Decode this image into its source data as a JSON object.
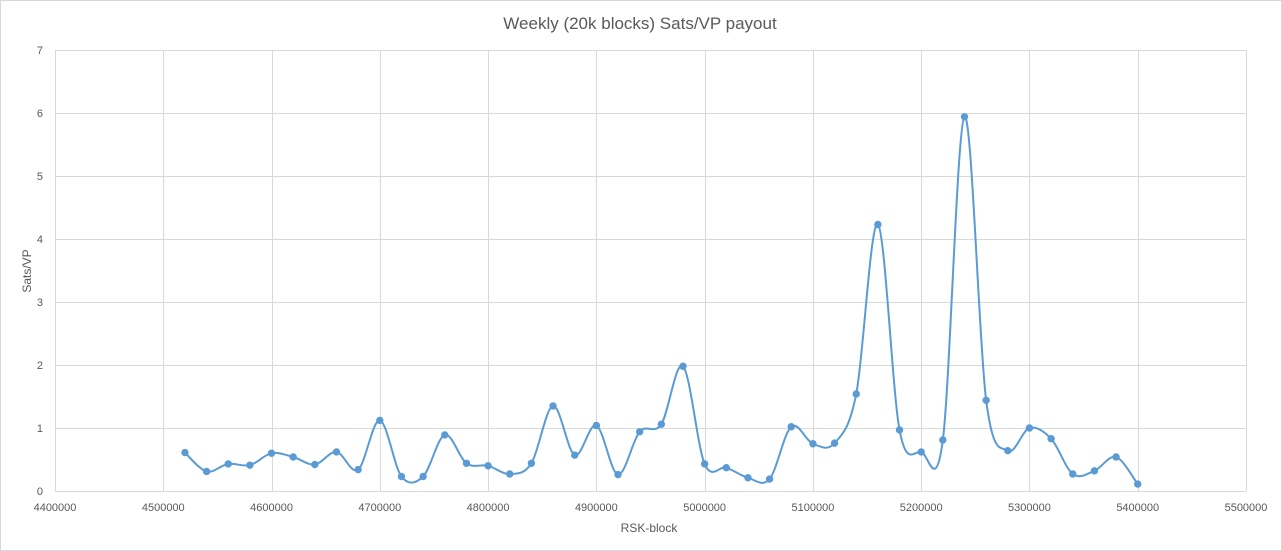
{
  "chart_data": {
    "type": "scatter",
    "style": "smooth-line-with-markers",
    "title": "Weekly (20k blocks) Sats/VP payout",
    "xlabel": "RSK-block",
    "ylabel": "Sats/VP",
    "xlim": [
      4400000,
      5500000
    ],
    "ylim": [
      0,
      7
    ],
    "xticks": [
      4400000,
      4500000,
      4600000,
      4700000,
      4800000,
      4900000,
      5000000,
      5100000,
      5200000,
      5300000,
      5400000,
      5500000
    ],
    "yticks": [
      0,
      1,
      2,
      3,
      4,
      5,
      6,
      7
    ],
    "grid": true,
    "series": [
      {
        "name": "Sats/VP",
        "color": "#5b9bd5",
        "x": [
          4520000,
          4540000,
          4560000,
          4580000,
          4600000,
          4620000,
          4640000,
          4660000,
          4680000,
          4700000,
          4720000,
          4740000,
          4760000,
          4780000,
          4800000,
          4820000,
          4840000,
          4860000,
          4880000,
          4900000,
          4920000,
          4940000,
          4960000,
          4980000,
          5000000,
          5020000,
          5040000,
          5060000,
          5080000,
          5100000,
          5120000,
          5140000,
          5160000,
          5180000,
          5200000,
          5220000,
          5240000,
          5260000,
          5280000,
          5300000,
          5320000,
          5340000,
          5360000,
          5380000,
          5400000
        ],
        "y": [
          0.61,
          0.31,
          0.43,
          0.41,
          0.6,
          0.54,
          0.42,
          0.62,
          0.34,
          1.12,
          0.23,
          0.23,
          0.89,
          0.44,
          0.4,
          0.27,
          0.44,
          1.35,
          0.57,
          1.04,
          0.26,
          0.94,
          1.06,
          1.98,
          0.43,
          0.37,
          0.21,
          0.19,
          1.02,
          0.75,
          0.76,
          1.54,
          4.23,
          0.97,
          0.62,
          0.81,
          5.94,
          1.44,
          0.64,
          1.0,
          0.83,
          0.27,
          0.32,
          0.54,
          0.11
        ]
      }
    ]
  }
}
